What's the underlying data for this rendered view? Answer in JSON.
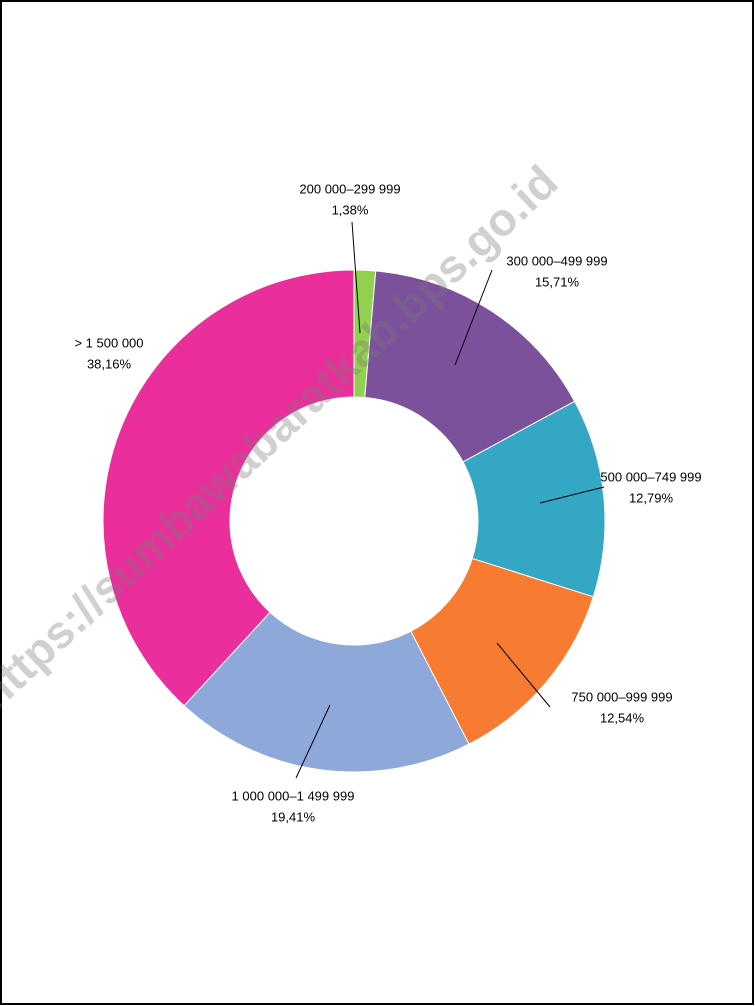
{
  "chart_data": {
    "type": "donut",
    "categories": [
      "200 000–299 999",
      "300 000–499 999",
      "500 000–749 999",
      "750 000–999 999",
      "1 000 000–1 499 999",
      "> 1 500 000"
    ],
    "values": [
      1.38,
      15.71,
      12.79,
      12.54,
      19.41,
      38.16
    ],
    "value_labels": [
      "1,38%",
      "15,71%",
      "12,79%",
      "12,54%",
      "19,41%",
      "38,16%"
    ],
    "colors": [
      "#92d050",
      "#7b519c",
      "#33a7c4",
      "#f77b30",
      "#8ea9d9",
      "#ea2f9c"
    ],
    "watermark": "https://sumbawabaratkab.bps.go.id"
  }
}
